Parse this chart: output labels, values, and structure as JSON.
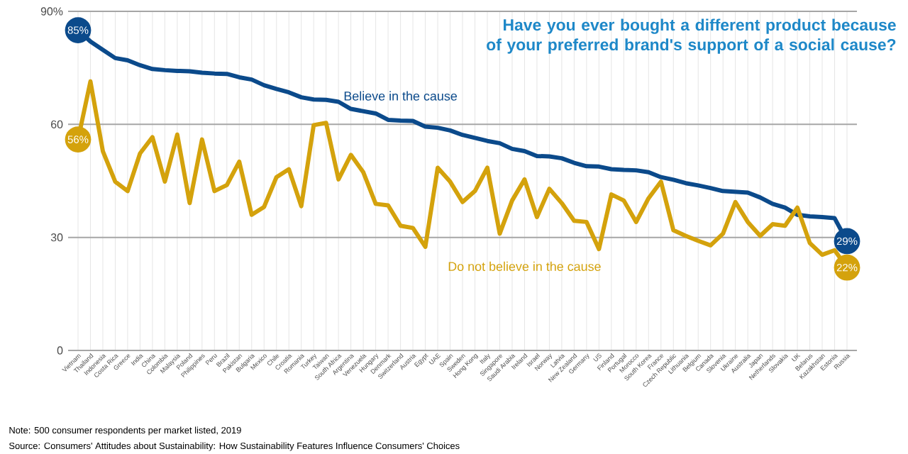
{
  "chart_data": {
    "type": "line",
    "title": "Have you ever bought a different product because of your preferred brand's support of a social cause?",
    "categories": [
      "Vietnam",
      "Thailand",
      "Indonesia",
      "Costa Rica",
      "Greece",
      "India",
      "China",
      "Colombia",
      "Malaysia",
      "Poland",
      "Philippines",
      "Peru",
      "Brazil",
      "Pakistan",
      "Bulgaria",
      "Mexico",
      "Chile",
      "Croatia",
      "Romania",
      "Turkey",
      "Taiwan",
      "South Africa",
      "Argentina",
      "Venezuela",
      "Hungary",
      "Denmark",
      "Switzerland",
      "Austria",
      "Egypt",
      "UAE",
      "Spain",
      "Sweden",
      "Hong Kong",
      "Italy",
      "Singapore",
      "Saudi Arabia",
      "Ireland",
      "Israel",
      "Norway",
      "Latvia",
      "New Zealand",
      "Germany",
      "US",
      "Finland",
      "Portugal",
      "Morocco",
      "South Korea",
      "France",
      "Czech Republic",
      "Lithuania",
      "Belgium",
      "Canada",
      "Slovenia",
      "Ukraine",
      "Australia",
      "Japan",
      "Netherlands",
      "Slovakia",
      "UK",
      "Belarus",
      "Kazakhstan",
      "Estonia",
      "Russia"
    ],
    "series": [
      {
        "name": "Believe in the cause",
        "color": "#0b4a8b",
        "values": [
          85,
          82,
          79.8,
          77.6,
          77,
          75.7,
          74.7,
          74.4,
          74.2,
          74.1,
          73.7,
          73.5,
          73.4,
          72.5,
          71.9,
          70.4,
          69.4,
          68.5,
          67.2,
          66.6,
          66.5,
          66,
          64.1,
          63.5,
          62.9,
          61.2,
          61,
          60.9,
          59.4,
          59.1,
          58.4,
          57.2,
          56.4,
          55.6,
          55,
          53.5,
          52.9,
          51.6,
          51.5,
          51,
          49.8,
          48.9,
          48.8,
          48.1,
          47.9,
          47.8,
          47.3,
          46,
          45.3,
          44.4,
          43.8,
          43.1,
          42.3,
          42.1,
          41.9,
          40.6,
          38.9,
          37.9,
          36,
          35.6,
          35.4,
          35.1,
          29
        ],
        "value_labels": [
          "85%",
          null,
          null,
          null,
          null,
          null,
          null,
          null,
          null,
          null,
          null,
          null,
          null,
          null,
          null,
          null,
          null,
          null,
          null,
          null,
          null,
          null,
          null,
          null,
          null,
          null,
          null,
          null,
          null,
          null,
          null,
          null,
          null,
          null,
          null,
          null,
          null,
          null,
          null,
          null,
          null,
          null,
          null,
          null,
          null,
          null,
          null,
          null,
          null,
          null,
          null,
          null,
          null,
          null,
          null,
          null,
          null,
          null,
          null,
          null,
          null,
          null,
          "29%"
        ]
      },
      {
        "name": "Do not believe in the cause",
        "color": "#d4a20c",
        "values": [
          56,
          71.4,
          52.9,
          44.8,
          42.3,
          52.3,
          56.6,
          44.8,
          57.3,
          39.1,
          56,
          42.3,
          43.9,
          50.1,
          36,
          38.1,
          46,
          48.1,
          38.3,
          59.8,
          60.4,
          45.4,
          51.9,
          47.3,
          38.9,
          38.5,
          33.1,
          32.5,
          27.5,
          48.5,
          44.8,
          39.4,
          42.3,
          48.5,
          31,
          39.8,
          45.4,
          35.4,
          42.9,
          39.1,
          34.4,
          34.1,
          26.9,
          41.4,
          39.8,
          34.1,
          40.4,
          44.8,
          31.9,
          30.4,
          29.1,
          27.9,
          31,
          39.4,
          34.1,
          30.4,
          33.5,
          33.1,
          37.9,
          28.5,
          25.4,
          26.6,
          22
        ],
        "value_labels": [
          "56%",
          null,
          null,
          null,
          null,
          null,
          null,
          null,
          null,
          null,
          null,
          null,
          null,
          null,
          null,
          null,
          null,
          null,
          null,
          null,
          null,
          null,
          null,
          null,
          null,
          null,
          null,
          null,
          null,
          null,
          null,
          null,
          null,
          null,
          null,
          null,
          null,
          null,
          null,
          null,
          null,
          null,
          null,
          null,
          null,
          null,
          null,
          null,
          null,
          null,
          null,
          null,
          null,
          null,
          null,
          null,
          null,
          null,
          null,
          null,
          null,
          null,
          "22%"
        ]
      }
    ],
    "ylim": [
      0,
      90
    ],
    "yticks": [
      0,
      30,
      60,
      {
        "value": 90,
        "label": "90%"
      }
    ],
    "grid": true,
    "legend": false,
    "marker": "none",
    "line_style": "solid",
    "annotations": [
      "Note: 500 consumer respondents per market listed, 2019",
      "Source: Consumers' Attitudes about Sustainability: How Sustainability Features Influence Consumers' Choices"
    ]
  }
}
